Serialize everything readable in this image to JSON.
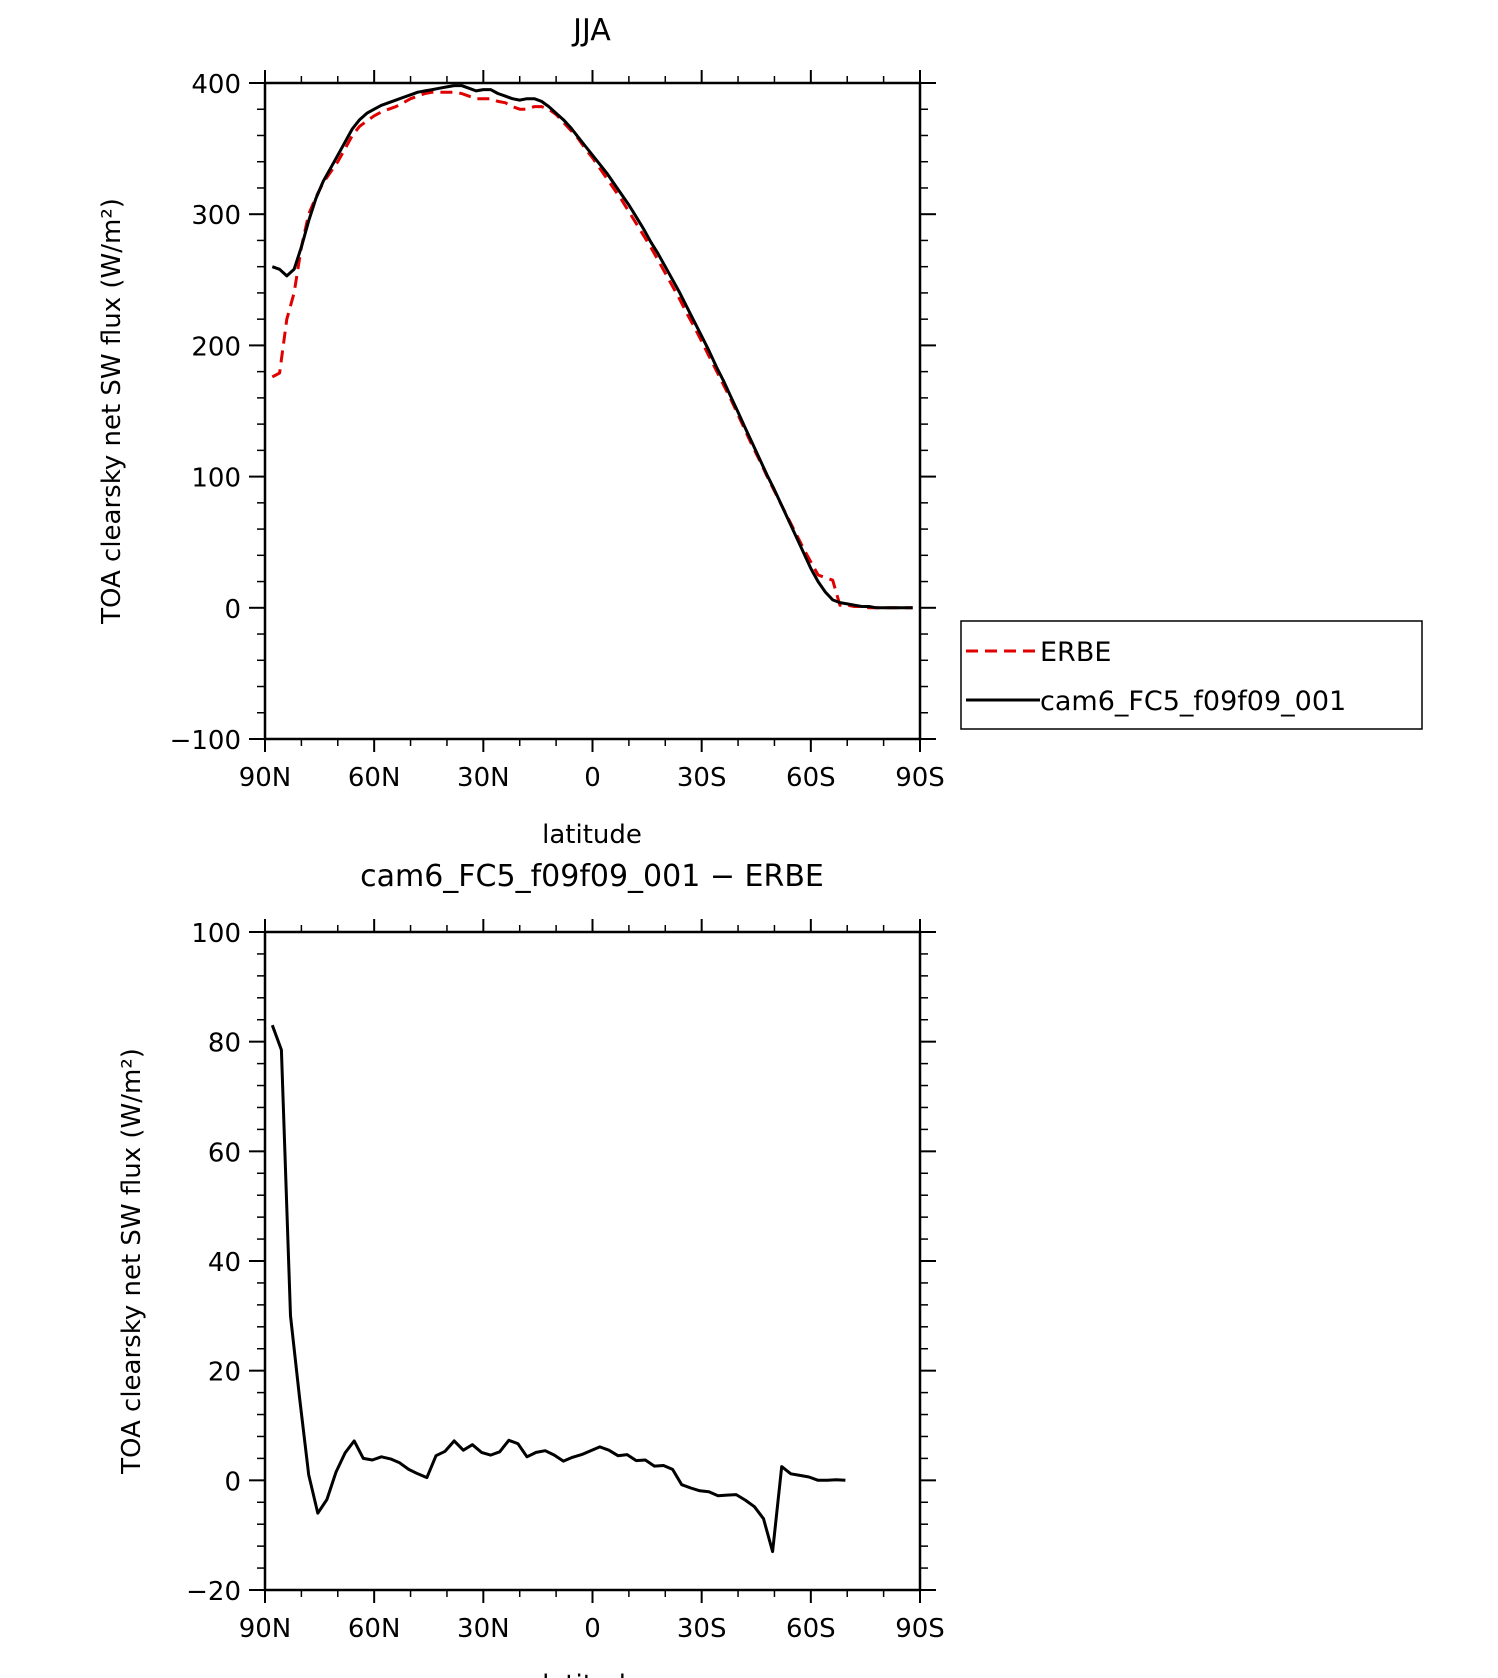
{
  "chart_data": [
    {
      "type": "line",
      "title": "JJA",
      "xlabel": "latitude",
      "ylabel": "TOA clearsky net SW flux (W/m²)",
      "xlim": [
        90,
        -90
      ],
      "ylim": [
        -100,
        400
      ],
      "xticks": [
        {
          "value": 90,
          "label": "90N"
        },
        {
          "value": 60,
          "label": "60N"
        },
        {
          "value": 30,
          "label": "30N"
        },
        {
          "value": 0,
          "label": "0"
        },
        {
          "value": -30,
          "label": "30S"
        },
        {
          "value": -60,
          "label": "60S"
        },
        {
          "value": -90,
          "label": "90S"
        }
      ],
      "yticks": [
        {
          "value": 400,
          "label": "400"
        },
        {
          "value": 300,
          "label": "300"
        },
        {
          "value": 200,
          "label": "200"
        },
        {
          "value": 100,
          "label": "100"
        },
        {
          "value": 0,
          "label": "0"
        },
        {
          "value": -100,
          "label": "−100"
        }
      ],
      "legend": "right",
      "series": [
        {
          "name": "ERBE",
          "color": "#e00000",
          "dash": "dashed",
          "points": [
            [
              88,
              176
            ],
            [
              86,
              179
            ],
            [
              84,
              220
            ],
            [
              82,
              240
            ],
            [
              80,
              275
            ],
            [
              78,
              300
            ],
            [
              76,
              313
            ],
            [
              74,
              324
            ],
            [
              72,
              332
            ],
            [
              70,
              340
            ],
            [
              68,
              350
            ],
            [
              66,
              360
            ],
            [
              64,
              367
            ],
            [
              62,
              371
            ],
            [
              60,
              375
            ],
            [
              58,
              378
            ],
            [
              56,
              380
            ],
            [
              54,
              382
            ],
            [
              52,
              385
            ],
            [
              50,
              388
            ],
            [
              48,
              390
            ],
            [
              46,
              392
            ],
            [
              44,
              393
            ],
            [
              42,
              393
            ],
            [
              40,
              393
            ],
            [
              38,
              393
            ],
            [
              36,
              392
            ],
            [
              34,
              390
            ],
            [
              32,
              388
            ],
            [
              30,
              388
            ],
            [
              28,
              388
            ],
            [
              26,
              386
            ],
            [
              24,
              385
            ],
            [
              22,
              382
            ],
            [
              20,
              380
            ],
            [
              18,
              380
            ],
            [
              16,
              382
            ],
            [
              14,
              382
            ],
            [
              12,
              380
            ],
            [
              10,
              376
            ],
            [
              8,
              370
            ],
            [
              6,
              364
            ],
            [
              4,
              358
            ],
            [
              2,
              350
            ],
            [
              0,
              343
            ],
            [
              -2,
              335
            ],
            [
              -4,
              327
            ],
            [
              -6,
              319
            ],
            [
              -8,
              311
            ],
            [
              -10,
              302
            ],
            [
              -12,
              293
            ],
            [
              -14,
              284
            ],
            [
              -16,
              275
            ],
            [
              -18,
              265
            ],
            [
              -20,
              255
            ],
            [
              -22,
              245
            ],
            [
              -24,
              235
            ],
            [
              -26,
              224
            ],
            [
              -28,
              214
            ],
            [
              -30,
              203
            ],
            [
              -32,
              192
            ],
            [
              -34,
              181
            ],
            [
              -36,
              170
            ],
            [
              -38,
              159
            ],
            [
              -40,
              147
            ],
            [
              -42,
              135
            ],
            [
              -44,
              123
            ],
            [
              -46,
              112
            ],
            [
              -48,
              100
            ],
            [
              -50,
              89
            ],
            [
              -52,
              78
            ],
            [
              -54,
              67
            ],
            [
              -56,
              56
            ],
            [
              -58,
              45
            ],
            [
              -60,
              35
            ],
            [
              -62,
              25
            ],
            [
              -64,
              23
            ],
            [
              -66,
              21
            ],
            [
              -68,
              2
            ],
            [
              -70,
              2
            ],
            [
              -72,
              1
            ],
            [
              -74,
              1
            ],
            [
              -76,
              0
            ],
            [
              -78,
              0
            ],
            [
              -80,
              0
            ],
            [
              -82,
              0
            ],
            [
              -84,
              0
            ],
            [
              -86,
              0
            ],
            [
              -88,
              0
            ]
          ]
        },
        {
          "name": "cam6_FC5_f09f09_001",
          "color": "#000000",
          "dash": "solid",
          "points": [
            [
              88,
              260
            ],
            [
              86,
              258
            ],
            [
              84,
              253
            ],
            [
              82,
              258
            ],
            [
              80,
              275
            ],
            [
              78,
              295
            ],
            [
              76,
              312
            ],
            [
              74,
              325
            ],
            [
              72,
              335
            ],
            [
              70,
              345
            ],
            [
              68,
              355
            ],
            [
              66,
              365
            ],
            [
              64,
              372
            ],
            [
              62,
              377
            ],
            [
              60,
              380
            ],
            [
              58,
              383
            ],
            [
              56,
              385
            ],
            [
              54,
              387
            ],
            [
              52,
              389
            ],
            [
              50,
              391
            ],
            [
              48,
              393
            ],
            [
              46,
              394
            ],
            [
              44,
              395
            ],
            [
              42,
              396
            ],
            [
              40,
              397
            ],
            [
              38,
              398
            ],
            [
              36,
              398
            ],
            [
              34,
              396
            ],
            [
              32,
              394
            ],
            [
              30,
              395
            ],
            [
              28,
              395
            ],
            [
              26,
              392
            ],
            [
              24,
              390
            ],
            [
              22,
              388
            ],
            [
              20,
              387
            ],
            [
              18,
              388
            ],
            [
              16,
              388
            ],
            [
              14,
              386
            ],
            [
              12,
              382
            ],
            [
              10,
              377
            ],
            [
              8,
              372
            ],
            [
              6,
              366
            ],
            [
              4,
              359
            ],
            [
              2,
              352
            ],
            [
              0,
              345
            ],
            [
              -2,
              338
            ],
            [
              -4,
              331
            ],
            [
              -6,
              323
            ],
            [
              -8,
              315
            ],
            [
              -10,
              307
            ],
            [
              -12,
              298
            ],
            [
              -14,
              289
            ],
            [
              -16,
              279
            ],
            [
              -18,
              270
            ],
            [
              -20,
              260
            ],
            [
              -22,
              250
            ],
            [
              -24,
              240
            ],
            [
              -26,
              229
            ],
            [
              -28,
              218
            ],
            [
              -30,
              207
            ],
            [
              -32,
              196
            ],
            [
              -34,
              184
            ],
            [
              -36,
              173
            ],
            [
              -38,
              161
            ],
            [
              -40,
              149
            ],
            [
              -42,
              137
            ],
            [
              -44,
              125
            ],
            [
              -46,
              113
            ],
            [
              -48,
              101
            ],
            [
              -50,
              90
            ],
            [
              -52,
              78
            ],
            [
              -54,
              66
            ],
            [
              -56,
              54
            ],
            [
              -58,
              42
            ],
            [
              -60,
              30
            ],
            [
              -62,
              20
            ],
            [
              -64,
              12
            ],
            [
              -66,
              6
            ],
            [
              -68,
              4
            ],
            [
              -70,
              3
            ],
            [
              -72,
              2
            ],
            [
              -74,
              1
            ],
            [
              -76,
              1
            ],
            [
              -78,
              0
            ],
            [
              -80,
              0
            ],
            [
              -82,
              0
            ],
            [
              -84,
              0
            ],
            [
              -86,
              0
            ],
            [
              -88,
              0
            ]
          ]
        }
      ]
    },
    {
      "type": "line",
      "title": "cam6_FC5_f09f09_001 − ERBE",
      "xlabel": "latitude",
      "ylabel": "TOA clearsky net SW flux (W/m²)",
      "xlim": [
        90,
        -90
      ],
      "ylim": [
        -20,
        100
      ],
      "xticks": [
        {
          "value": 90,
          "label": "90N"
        },
        {
          "value": 60,
          "label": "60N"
        },
        {
          "value": 30,
          "label": "30N"
        },
        {
          "value": 0,
          "label": "0"
        },
        {
          "value": -30,
          "label": "30S"
        },
        {
          "value": -60,
          "label": "60S"
        },
        {
          "value": -90,
          "label": "90S"
        }
      ],
      "yticks": [
        {
          "value": 100,
          "label": "100"
        },
        {
          "value": 80,
          "label": "80"
        },
        {
          "value": 60,
          "label": "60"
        },
        {
          "value": 40,
          "label": "40"
        },
        {
          "value": 20,
          "label": "20"
        },
        {
          "value": 0,
          "label": "0"
        },
        {
          "value": -20,
          "label": "−20"
        }
      ],
      "series": [
        {
          "color": "#000000",
          "dash": "solid",
          "points": [
            [
              88,
              83
            ],
            [
              85.5,
              78.5
            ],
            [
              83,
              30
            ],
            [
              80.5,
              15
            ],
            [
              78,
              1
            ],
            [
              75.5,
              -6
            ],
            [
              73,
              -3.5
            ],
            [
              70.5,
              1.5
            ],
            [
              68,
              5
            ],
            [
              65.5,
              7.2
            ],
            [
              63,
              4
            ],
            [
              60.5,
              3.7
            ],
            [
              58,
              4.3
            ],
            [
              55.5,
              3.9
            ],
            [
              53,
              3.2
            ],
            [
              50.5,
              2
            ],
            [
              48,
              1.2
            ],
            [
              45.5,
              0.5
            ],
            [
              43,
              4.5
            ],
            [
              40.5,
              5.3
            ],
            [
              38,
              7.2
            ],
            [
              35.5,
              5.5
            ],
            [
              33,
              6.5
            ],
            [
              30.5,
              5.1
            ],
            [
              28,
              4.6
            ],
            [
              25.5,
              5.2
            ],
            [
              23,
              7.3
            ],
            [
              20.5,
              6.7
            ],
            [
              18,
              4.3
            ],
            [
              15.5,
              5.1
            ],
            [
              13,
              5.4
            ],
            [
              10.5,
              4.6
            ],
            [
              8,
              3.5
            ],
            [
              5.5,
              4.2
            ],
            [
              3,
              4.7
            ],
            [
              0.5,
              5.4
            ],
            [
              -2,
              6.1
            ],
            [
              -4.5,
              5.5
            ],
            [
              -7,
              4.5
            ],
            [
              -9.5,
              4.7
            ],
            [
              -12,
              3.6
            ],
            [
              -14.5,
              3.7
            ],
            [
              -17,
              2.6
            ],
            [
              -19.5,
              2.7
            ],
            [
              -22,
              2
            ],
            [
              -24.5,
              -0.8
            ],
            [
              -27,
              -1.4
            ],
            [
              -29.5,
              -1.9
            ],
            [
              -32,
              -2.1
            ],
            [
              -34.5,
              -2.8
            ],
            [
              -37,
              -2.7
            ],
            [
              -39.5,
              -2.6
            ],
            [
              -42,
              -3.6
            ],
            [
              -44.5,
              -4.8
            ],
            [
              -47,
              -7
            ],
            [
              -49.5,
              -13
            ],
            [
              -52,
              2.5
            ],
            [
              -54.5,
              1.2
            ],
            [
              -57,
              0.9
            ],
            [
              -59.5,
              0.6
            ],
            [
              -62,
              0
            ],
            [
              -64.5,
              0
            ],
            [
              -67,
              0.1
            ],
            [
              -69.5,
              0
            ]
          ]
        }
      ]
    }
  ]
}
